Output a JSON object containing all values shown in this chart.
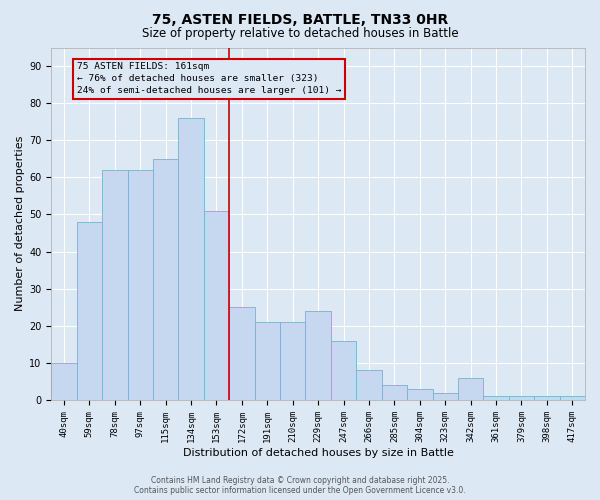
{
  "title": "75, ASTEN FIELDS, BATTLE, TN33 0HR",
  "subtitle": "Size of property relative to detached houses in Battle",
  "xlabel": "Distribution of detached houses by size in Battle",
  "ylabel": "Number of detached properties",
  "categories": [
    "40sqm",
    "59sqm",
    "78sqm",
    "97sqm",
    "115sqm",
    "134sqm",
    "153sqm",
    "172sqm",
    "191sqm",
    "210sqm",
    "229sqm",
    "247sqm",
    "266sqm",
    "285sqm",
    "304sqm",
    "323sqm",
    "342sqm",
    "361sqm",
    "379sqm",
    "398sqm",
    "417sqm"
  ],
  "values": [
    10,
    48,
    62,
    62,
    65,
    76,
    51,
    25,
    21,
    21,
    24,
    16,
    8,
    4,
    3,
    2,
    6,
    1,
    1,
    1,
    1
  ],
  "bar_color": "#c5d8f0",
  "bar_edgecolor": "#7bafd4",
  "ylim": [
    0,
    95
  ],
  "yticks": [
    0,
    10,
    20,
    30,
    40,
    50,
    60,
    70,
    80,
    90
  ],
  "vline_x": 6.5,
  "vline_color": "#cc0000",
  "annotation_text": "75 ASTEN FIELDS: 161sqm\n← 76% of detached houses are smaller (323)\n24% of semi-detached houses are larger (101) →",
  "annotation_box_edgecolor": "#cc0000",
  "footer1": "Contains HM Land Registry data © Crown copyright and database right 2025.",
  "footer2": "Contains public sector information licensed under the Open Government Licence v3.0.",
  "background_color": "#dde8f5",
  "plot_bg_color": "#dde8f5",
  "grid_color": "#ffffff",
  "title_fontsize": 10,
  "subtitle_fontsize": 8.5,
  "tick_fontsize": 6.5,
  "label_fontsize": 8,
  "footer_fontsize": 5.5
}
